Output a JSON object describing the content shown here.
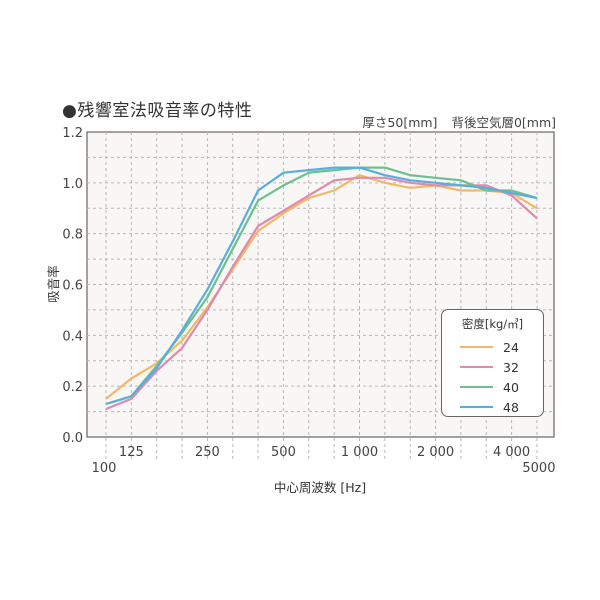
{
  "header": {
    "title": "●残響室法吸音率の特性",
    "condition_thickness": "厚さ50[mm]",
    "condition_air_layer": "背後空気層0[mm]"
  },
  "legend": {
    "title": "密度[kg/㎥]",
    "items": [
      {
        "label": "24",
        "color": "#F2B86A"
      },
      {
        "label": "32",
        "color": "#E08AAE"
      },
      {
        "label": "40",
        "color": "#6DBF8E"
      },
      {
        "label": "48",
        "color": "#5AAEDC"
      }
    ]
  },
  "axes": {
    "ylabel": "吸音率",
    "xlabel": "中心周波数 [Hz]",
    "yticks": [
      "0.0",
      "0.2",
      "0.4",
      "0.6",
      "0.8",
      "1.0",
      "1.2"
    ],
    "xticks_upper": [
      "125",
      "250",
      "500",
      "1 000",
      "2 000",
      "4 000"
    ],
    "xticks_lower": [
      "100",
      "5000"
    ]
  },
  "chart_data": {
    "type": "line",
    "title": "●残響室法吸音率の特性",
    "subtitle": "厚さ50[mm]　背後空気層0[mm]",
    "xlabel": "中心周波数 [Hz]",
    "ylabel": "吸音率",
    "xscale": "log (1/3 octave bands)",
    "x": [
      100,
      125,
      160,
      200,
      250,
      315,
      400,
      500,
      630,
      800,
      1000,
      1250,
      1600,
      2000,
      2500,
      3150,
      4000,
      5000
    ],
    "ylim": [
      0.0,
      1.2
    ],
    "yticks": [
      0.0,
      0.2,
      0.4,
      0.6,
      0.8,
      1.0,
      1.2
    ],
    "xtick_labels": [
      "100",
      "125",
      "250",
      "500",
      "1 000",
      "2 000",
      "4 000",
      "5000"
    ],
    "grid": true,
    "legend_title": "密度[kg/㎥]",
    "legend_position": "lower right (inside plot)",
    "series": [
      {
        "name": "24",
        "color": "#F2B86A",
        "values": [
          0.15,
          0.23,
          0.29,
          0.38,
          0.51,
          0.66,
          0.81,
          0.88,
          0.94,
          0.97,
          1.03,
          1.0,
          0.98,
          0.99,
          0.97,
          0.97,
          0.96,
          0.9
        ]
      },
      {
        "name": "32",
        "color": "#E08AAE",
        "values": [
          0.11,
          0.15,
          0.26,
          0.35,
          0.5,
          0.67,
          0.83,
          0.89,
          0.95,
          1.01,
          1.02,
          1.02,
          1.0,
          0.99,
          0.99,
          0.99,
          0.95,
          0.86
        ]
      },
      {
        "name": "40",
        "color": "#6DBF8E",
        "values": [
          0.13,
          0.16,
          0.28,
          0.41,
          0.55,
          0.74,
          0.93,
          0.99,
          1.04,
          1.05,
          1.06,
          1.06,
          1.03,
          1.02,
          1.01,
          0.97,
          0.97,
          0.94
        ]
      },
      {
        "name": "48",
        "color": "#5AAEDC",
        "values": [
          0.13,
          0.16,
          0.27,
          0.42,
          0.58,
          0.77,
          0.97,
          1.04,
          1.05,
          1.06,
          1.06,
          1.03,
          1.01,
          1.0,
          0.99,
          0.98,
          0.96,
          0.94
        ]
      }
    ]
  }
}
